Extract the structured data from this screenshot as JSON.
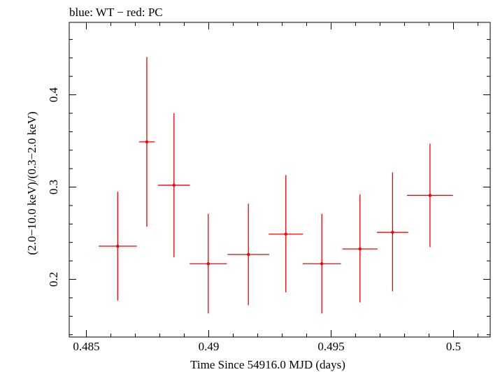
{
  "chart_data": {
    "type": "scatter",
    "title": "blue: WT − red: PC",
    "xlabel": "Time Since 54916.0 MJD (days)",
    "ylabel": "(2.0−10.0 keV)/(0.3−2.0 keV)",
    "xlim": [
      0.4843,
      0.5015
    ],
    "ylim": [
      0.1375,
      0.4785
    ],
    "x_ticks": [
      0.485,
      0.49,
      0.495,
      0.5
    ],
    "x_tick_labels": [
      "0.485",
      "0.49",
      "0.495",
      "0.5"
    ],
    "y_ticks": [
      0.2,
      0.3,
      0.4
    ],
    "y_tick_labels": [
      "0.2",
      "0.3",
      "0.4"
    ],
    "series": [
      {
        "name": "PC",
        "color": "#ee0000",
        "points": [
          {
            "x": 0.48628,
            "xerr": 0.00078,
            "y": 0.236,
            "ylo": 0.177,
            "yhi": 0.295
          },
          {
            "x": 0.48747,
            "xerr": 0.00032,
            "y": 0.349,
            "ylo": 0.257,
            "yhi": 0.441
          },
          {
            "x": 0.48858,
            "xerr": 0.00065,
            "y": 0.302,
            "ylo": 0.224,
            "yhi": 0.38
          },
          {
            "x": 0.48998,
            "xerr": 0.00076,
            "y": 0.217,
            "ylo": 0.163,
            "yhi": 0.271
          },
          {
            "x": 0.49162,
            "xerr": 0.00085,
            "y": 0.227,
            "ylo": 0.172,
            "yhi": 0.282
          },
          {
            "x": 0.49315,
            "xerr": 0.0007,
            "y": 0.249,
            "ylo": 0.186,
            "yhi": 0.313
          },
          {
            "x": 0.49462,
            "xerr": 0.00078,
            "y": 0.217,
            "ylo": 0.163,
            "yhi": 0.271
          },
          {
            "x": 0.49618,
            "xerr": 0.00072,
            "y": 0.233,
            "ylo": 0.175,
            "yhi": 0.292
          },
          {
            "x": 0.49751,
            "xerr": 0.00064,
            "y": 0.251,
            "ylo": 0.187,
            "yhi": 0.316
          },
          {
            "x": 0.49904,
            "xerr": 0.00094,
            "y": 0.291,
            "ylo": 0.235,
            "yhi": 0.347
          }
        ]
      }
    ]
  }
}
